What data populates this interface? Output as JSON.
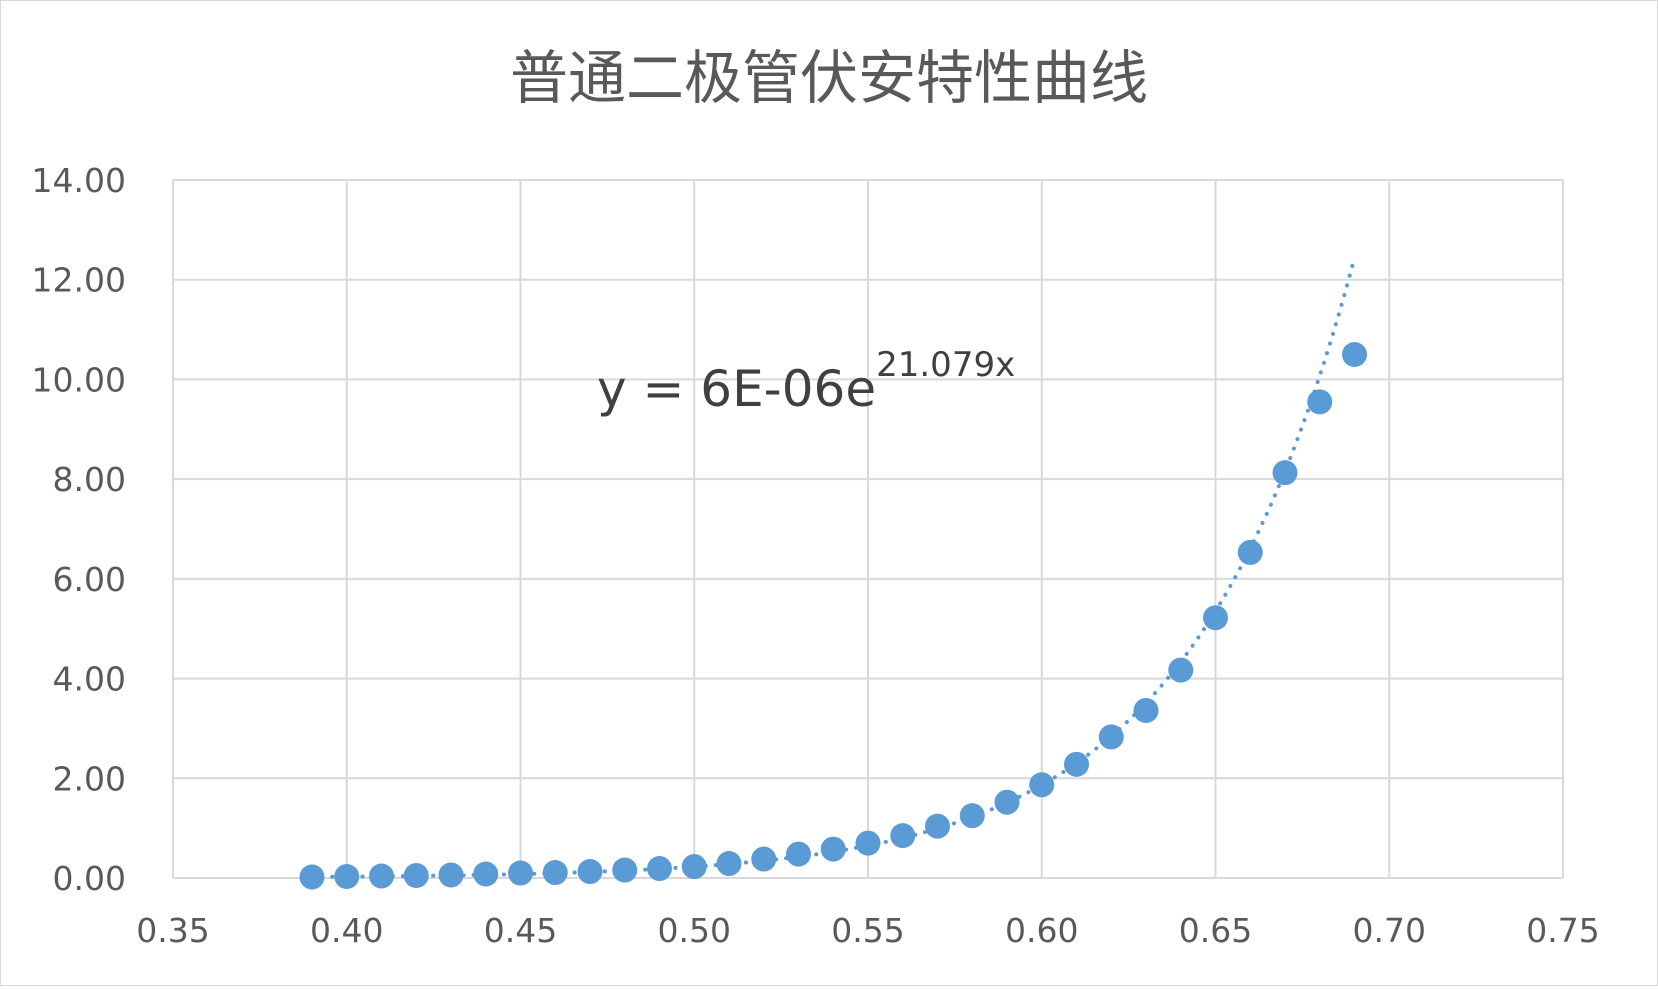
{
  "chart_data": {
    "type": "scatter",
    "title": "普通二极管伏安特性曲线",
    "xlabel": "",
    "ylabel": "",
    "xlim": [
      0.35,
      0.75
    ],
    "ylim": [
      0,
      14
    ],
    "grid": true,
    "x_ticks": [
      "0.35",
      "0.40",
      "0.45",
      "0.50",
      "0.55",
      "0.60",
      "0.65",
      "0.70",
      "0.75"
    ],
    "y_ticks": [
      "0.00",
      "2.00",
      "4.00",
      "6.00",
      "8.00",
      "10.00",
      "12.00",
      "14.00"
    ],
    "series": [
      {
        "name": "data",
        "color": "#5b9bd5",
        "points": [
          {
            "x": 0.39,
            "y": 0.02
          },
          {
            "x": 0.4,
            "y": 0.03
          },
          {
            "x": 0.41,
            "y": 0.04
          },
          {
            "x": 0.42,
            "y": 0.05
          },
          {
            "x": 0.43,
            "y": 0.06
          },
          {
            "x": 0.44,
            "y": 0.08
          },
          {
            "x": 0.45,
            "y": 0.1
          },
          {
            "x": 0.46,
            "y": 0.11
          },
          {
            "x": 0.47,
            "y": 0.13
          },
          {
            "x": 0.48,
            "y": 0.16
          },
          {
            "x": 0.49,
            "y": 0.19
          },
          {
            "x": 0.5,
            "y": 0.23
          },
          {
            "x": 0.51,
            "y": 0.29
          },
          {
            "x": 0.52,
            "y": 0.38
          },
          {
            "x": 0.53,
            "y": 0.48
          },
          {
            "x": 0.54,
            "y": 0.58
          },
          {
            "x": 0.55,
            "y": 0.7
          },
          {
            "x": 0.56,
            "y": 0.85
          },
          {
            "x": 0.57,
            "y": 1.04
          },
          {
            "x": 0.58,
            "y": 1.25
          },
          {
            "x": 0.59,
            "y": 1.52
          },
          {
            "x": 0.6,
            "y": 1.87
          },
          {
            "x": 0.61,
            "y": 2.28
          },
          {
            "x": 0.62,
            "y": 2.83
          },
          {
            "x": 0.63,
            "y": 3.36
          },
          {
            "x": 0.64,
            "y": 4.17
          },
          {
            "x": 0.65,
            "y": 5.22
          },
          {
            "x": 0.66,
            "y": 6.53
          },
          {
            "x": 0.67,
            "y": 8.13
          },
          {
            "x": 0.68,
            "y": 9.55
          },
          {
            "x": 0.69,
            "y": 10.5
          }
        ]
      }
    ],
    "trendline": {
      "type": "exponential",
      "a": 6e-06,
      "b": 21.079,
      "x_range": [
        0.39,
        0.69
      ],
      "color": "#5b9bd5",
      "style": "dotted",
      "equation_base": "y = 6E-06e",
      "equation_exponent": "21.079x"
    }
  }
}
